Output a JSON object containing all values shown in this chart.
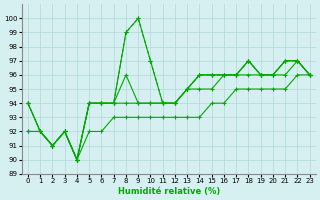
{
  "xlabel": "Humidité relative (%)",
  "ylabel": "",
  "bg_color": "#d6eff0",
  "grid_color": "#b0d8da",
  "line_color": "#00aa00",
  "xlim": [
    -0.5,
    23.5
  ],
  "ylim": [
    89,
    101
  ],
  "yticks": [
    89,
    90,
    91,
    92,
    93,
    94,
    95,
    96,
    97,
    98,
    99,
    100
  ],
  "xticks": [
    0,
    1,
    2,
    3,
    4,
    5,
    6,
    7,
    8,
    9,
    10,
    11,
    12,
    13,
    14,
    15,
    16,
    17,
    18,
    19,
    20,
    21,
    22,
    23
  ],
  "series": [
    [
      94,
      92,
      91,
      92,
      90,
      94,
      94,
      94,
      99,
      100,
      97,
      94,
      94,
      95,
      96,
      96,
      96,
      96,
      97,
      96,
      96,
      97,
      97,
      96
    ],
    [
      94,
      92,
      91,
      92,
      90,
      94,
      94,
      94,
      96,
      94,
      94,
      94,
      94,
      95,
      96,
      96,
      96,
      96,
      97,
      96,
      96,
      97,
      97,
      96
    ],
    [
      92,
      92,
      91,
      92,
      90,
      94,
      94,
      94,
      94,
      94,
      94,
      94,
      94,
      95,
      95,
      95,
      96,
      96,
      96,
      96,
      96,
      96,
      97,
      96
    ],
    [
      92,
      92,
      91,
      92,
      90,
      92,
      92,
      93,
      93,
      93,
      93,
      93,
      93,
      93,
      93,
      94,
      94,
      95,
      95,
      95,
      95,
      95,
      96,
      96
    ]
  ]
}
